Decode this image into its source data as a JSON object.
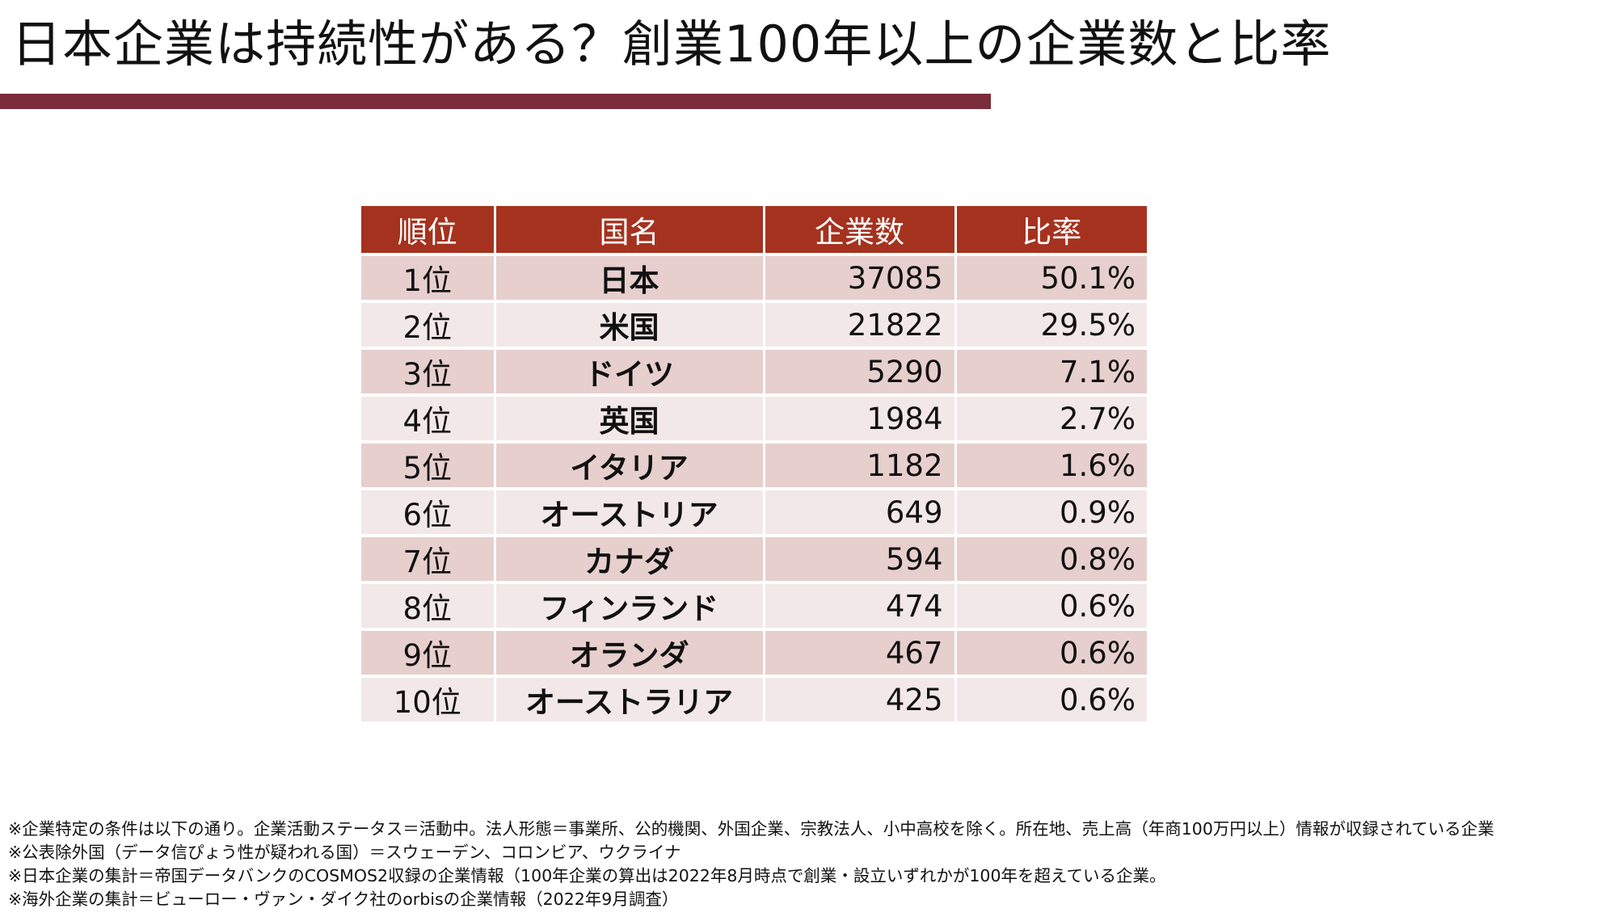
{
  "title": "日本企業は持続性がある？創業100年以上の企業数と比率",
  "table": {
    "headers": [
      "順位",
      "国名",
      "企業数",
      "比率"
    ],
    "rows": [
      {
        "rank": "1位",
        "country": "日本",
        "count": "37085",
        "ratio": "50.1%"
      },
      {
        "rank": "2位",
        "country": "米国",
        "count": "21822",
        "ratio": "29.5%"
      },
      {
        "rank": "3位",
        "country": "ドイツ",
        "count": "5290",
        "ratio": "7.1%"
      },
      {
        "rank": "4位",
        "country": "英国",
        "count": "1984",
        "ratio": "2.7%"
      },
      {
        "rank": "5位",
        "country": "イタリア",
        "count": "1182",
        "ratio": "1.6%"
      },
      {
        "rank": "6位",
        "country": "オーストリア",
        "count": "649",
        "ratio": "0.9%"
      },
      {
        "rank": "7位",
        "country": "カナダ",
        "count": "594",
        "ratio": "0.8%"
      },
      {
        "rank": "8位",
        "country": "フィンランド",
        "count": "474",
        "ratio": "0.6%"
      },
      {
        "rank": "9位",
        "country": "オランダ",
        "count": "467",
        "ratio": "0.6%"
      },
      {
        "rank": "10位",
        "country": "オーストラリア",
        "count": "425",
        "ratio": "0.6%"
      }
    ]
  },
  "notes": [
    "※企業特定の条件は以下の通り。企業活動ステータス＝活動中。法人形態＝事業所、公的機関、外国企業、宗教法人、小中高校を除く。所在地、売上高（年商100万円以上）情報が収録されている企業",
    "※公表除外国（データ信ぴょう性が疑われる国）＝スウェーデン、コロンビア、ウクライナ",
    "※日本企業の集計＝帝国データバンクのCOSMOS2収録の企業情報（100年企業の算出は2022年8月時点で創業・設立いずれかが100年を超えている企業。",
    "※海外企業の集計＝ビューロー・ヴァン・ダイク社のorbisの企業情報（2022年9月調査）"
  ],
  "colors": {
    "title_rule": "#7b2d3c",
    "header_bg": "#a5321f",
    "row_odd_bg": "#e6cfcd",
    "row_even_bg": "#f2e8e7"
  }
}
